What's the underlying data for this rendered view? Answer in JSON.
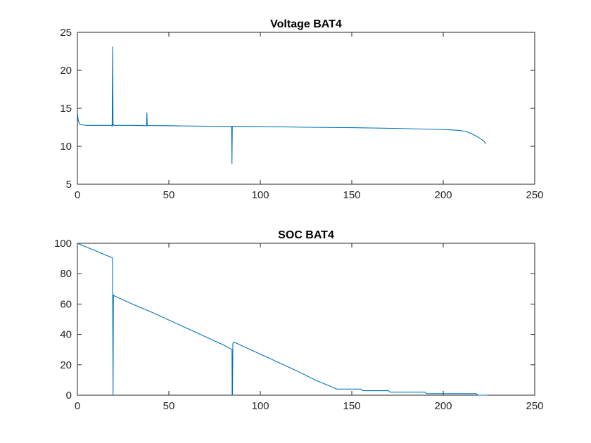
{
  "chart_data": [
    {
      "type": "line",
      "title": "Voltage BAT4",
      "xlabel": "",
      "ylabel": "",
      "xlim": [
        0,
        250
      ],
      "ylim": [
        5,
        25
      ],
      "xticks": [
        0,
        50,
        100,
        150,
        200,
        250
      ],
      "yticks": [
        5,
        10,
        15,
        20,
        25
      ],
      "grid": false,
      "line_color": "#0072BD",
      "series": [
        {
          "x": [
            0,
            0.2,
            0.5,
            1,
            2,
            3,
            5,
            10,
            15,
            18.8,
            19.0,
            19.3,
            19.5,
            19.7,
            20.0,
            21,
            30,
            37.8,
            38.0,
            38.2,
            38.5,
            39,
            50,
            84.3,
            84.5,
            84.7,
            85,
            86,
            100,
            125,
            150,
            175,
            200,
            205,
            210,
            213,
            216,
            219,
            221,
            222.5,
            223.2
          ],
          "y": [
            14.5,
            14.0,
            13.4,
            13.0,
            12.85,
            12.8,
            12.75,
            12.75,
            12.75,
            12.75,
            12.6,
            23.1,
            12.75,
            12.9,
            12.75,
            12.75,
            12.75,
            12.7,
            14.4,
            12.7,
            12.72,
            12.72,
            12.7,
            12.6,
            7.7,
            12.6,
            12.62,
            12.62,
            12.6,
            12.5,
            12.45,
            12.35,
            12.2,
            12.15,
            12.05,
            11.9,
            11.6,
            11.2,
            10.9,
            10.6,
            10.3
          ]
        }
      ]
    },
    {
      "type": "line",
      "title": "SOC BAT4",
      "xlabel": "",
      "ylabel": "",
      "xlim": [
        0,
        250
      ],
      "ylim": [
        0,
        100
      ],
      "xticks": [
        0,
        50,
        100,
        150,
        200,
        250
      ],
      "yticks": [
        0,
        20,
        40,
        60,
        80,
        100
      ],
      "grid": false,
      "line_color": "#0072BD",
      "series": [
        {
          "x": [
            0,
            5,
            10,
            15,
            19,
            19.2,
            19.5,
            19.7,
            20,
            30,
            40,
            50,
            60,
            70,
            80,
            84.5,
            84.6,
            84.8,
            85,
            85.5,
            100,
            110,
            120,
            130,
            140,
            142,
            155,
            156,
            170,
            171,
            190,
            191,
            218,
            219,
            224
          ],
          "y": [
            100,
            97.5,
            95,
            92.5,
            90.5,
            90,
            0,
            66,
            65.5,
            60,
            55,
            49.5,
            44,
            38.5,
            33,
            30,
            0,
            0,
            34,
            35,
            27,
            21.5,
            16,
            10,
            5,
            4,
            4,
            3,
            3,
            2,
            2,
            1,
            1,
            0,
            0
          ]
        }
      ]
    }
  ]
}
